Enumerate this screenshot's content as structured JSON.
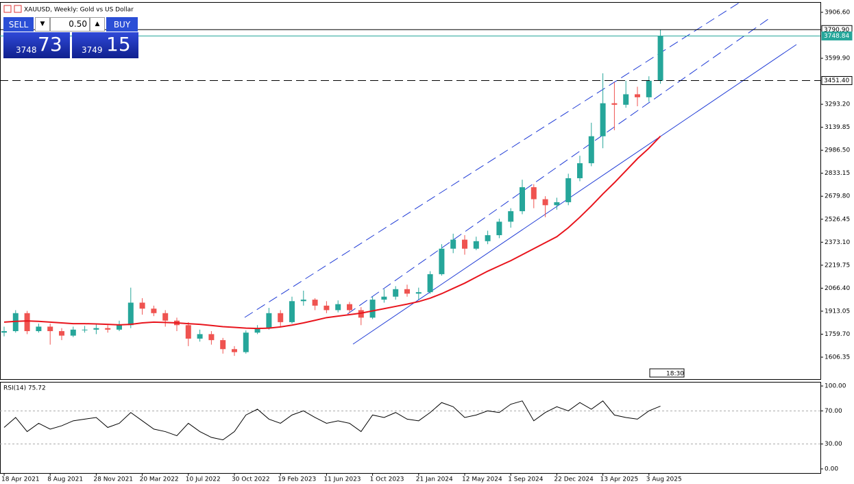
{
  "chart_data": [
    {
      "type": "candlestick",
      "title": "XAUUSD, Weekly:  Gold vs US Dollar",
      "categories": [
        "18 Apr 2021",
        null,
        null,
        null,
        "8 Aug 2021",
        null,
        null,
        null,
        "28 Nov 2021",
        null,
        null,
        null,
        "20 Mar 2022",
        null,
        null,
        null,
        "10 Jul 2022",
        null,
        null,
        null,
        "30 Oct 2022",
        null,
        null,
        null,
        "19 Feb 2023",
        null,
        null,
        null,
        "11 Jun 2023",
        null,
        null,
        null,
        "1 Oct 2023",
        null,
        null,
        null,
        "21 Jan 2024",
        null,
        null,
        null,
        "12 May 2024",
        null,
        null,
        null,
        "1 Sep 2024",
        null,
        null,
        null,
        "22 Dec 2024",
        null,
        null,
        null,
        "13 Apr 2025",
        null,
        null,
        null,
        "3 Aug 2025",
        null
      ],
      "open": [
        1770,
        1780,
        1900,
        1780,
        1810,
        1780,
        1750,
        1790,
        1790,
        1800,
        1790,
        1820,
        1970,
        1930,
        1900,
        1850,
        1820,
        1730,
        1760,
        1720,
        1660,
        1640,
        1770,
        1800,
        1900,
        1840,
        1980,
        1990,
        1950,
        1920,
        1960,
        1920,
        1870,
        1990,
        2010,
        2060,
        2030,
        2040,
        2160,
        2330,
        2390,
        2330,
        2380,
        2420,
        2510,
        2580,
        2740,
        2660,
        2620,
        2640,
        2800,
        2900,
        3080,
        3300,
        3290,
        3360,
        3340,
        3450
      ],
      "high": [
        1810,
        1920,
        1915,
        1830,
        1830,
        1800,
        1810,
        1815,
        1830,
        1820,
        1850,
        2070,
        2000,
        1950,
        1920,
        1870,
        1840,
        1790,
        1780,
        1735,
        1680,
        1785,
        1820,
        1935,
        1920,
        2010,
        2050,
        2000,
        1980,
        1985,
        1975,
        1940,
        2010,
        2060,
        2080,
        2090,
        2070,
        2180,
        2360,
        2430,
        2420,
        2410,
        2450,
        2530,
        2600,
        2790,
        2760,
        2680,
        2670,
        2830,
        2950,
        3170,
        3500,
        3440,
        3450,
        3410,
        3480,
        3790.9
      ],
      "low": [
        1745,
        1770,
        1760,
        1770,
        1690,
        1720,
        1740,
        1770,
        1760,
        1770,
        1780,
        1800,
        1890,
        1880,
        1810,
        1780,
        1680,
        1710,
        1690,
        1630,
        1615,
        1630,
        1760,
        1790,
        1810,
        1830,
        1950,
        1920,
        1900,
        1905,
        1900,
        1820,
        1860,
        1970,
        1990,
        2010,
        1990,
        2030,
        2150,
        2300,
        2290,
        2320,
        2360,
        2400,
        2470,
        2560,
        2600,
        2540,
        2590,
        2620,
        2780,
        2880,
        3000,
        3120,
        3270,
        3280,
        3310,
        3430
      ],
      "close": [
        1780,
        1900,
        1780,
        1810,
        1780,
        1750,
        1790,
        1790,
        1800,
        1790,
        1820,
        1970,
        1930,
        1900,
        1850,
        1820,
        1730,
        1760,
        1720,
        1660,
        1640,
        1770,
        1800,
        1900,
        1840,
        1980,
        1990,
        1950,
        1920,
        1960,
        1920,
        1870,
        1990,
        2010,
        2060,
        2030,
        2040,
        2160,
        2330,
        2390,
        2330,
        2380,
        2420,
        2510,
        2580,
        2740,
        2660,
        2620,
        2640,
        2800,
        2900,
        3080,
        3300,
        3290,
        3360,
        3340,
        3450,
        3748.84
      ],
      "up_color": "#26a69a",
      "down_color": "#ef5350",
      "overlays": [
        {
          "color": "#e8141c",
          "values": [
            1840,
            1845,
            1848,
            1845,
            1840,
            1835,
            1830,
            1830,
            1828,
            1825,
            1822,
            1825,
            1835,
            1840,
            1838,
            1835,
            1830,
            1825,
            1818,
            1810,
            1805,
            1800,
            1798,
            1800,
            1808,
            1820,
            1835,
            1852,
            1870,
            1880,
            1890,
            1900,
            1915,
            1930,
            1945,
            1960,
            1977,
            2000,
            2030,
            2065,
            2100,
            2140,
            2180,
            2215,
            2250,
            2290,
            2330,
            2370,
            2410,
            2470,
            2540,
            2615,
            2695,
            2770,
            2850,
            2930,
            3000,
            3080
          ]
        }
      ],
      "price_lines": [
        {
          "value": 3790.9,
          "label": "3790.90",
          "color": "#000000",
          "style": "solid"
        },
        {
          "value": 3748.84,
          "label": "3748.84",
          "color": "#26a69a",
          "style": "solid"
        },
        {
          "value": 3451.4,
          "label": "3451.40",
          "color": "#000000",
          "style": "dashed"
        }
      ],
      "ylim": [
        1460,
        3975
      ],
      "yticks": [
        {
          "value": 1606.35,
          "label": "1606.35"
        },
        {
          "value": 1759.7,
          "label": "1759.70"
        },
        {
          "value": 1913.05,
          "label": "1913.05"
        },
        {
          "value": 2066.4,
          "label": "2066.40"
        },
        {
          "value": 2219.75,
          "label": "2219.75"
        },
        {
          "value": 2373.1,
          "label": "2373.10"
        },
        {
          "value": 2526.45,
          "label": "2526.45"
        },
        {
          "value": 2679.8,
          "label": "2679.80"
        },
        {
          "value": 2833.15,
          "label": "2833.15"
        },
        {
          "value": 2986.5,
          "label": "2986.50"
        },
        {
          "value": 3139.85,
          "label": "3139.85"
        },
        {
          "value": 3293.2,
          "label": "3293.20"
        },
        {
          "value": 3599.9,
          "label": "3599.90"
        },
        {
          "value": 3906.6,
          "label": "3906.60"
        }
      ],
      "grid": false
    },
    {
      "type": "line",
      "title": "RSI(14) 75.72",
      "color": "#000000",
      "values": [
        50,
        62,
        45,
        55,
        48,
        52,
        58,
        60,
        62,
        50,
        55,
        68,
        58,
        48,
        45,
        40,
        55,
        45,
        38,
        35,
        45,
        65,
        72,
        60,
        55,
        65,
        70,
        62,
        55,
        58,
        55,
        45,
        65,
        62,
        68,
        60,
        58,
        68,
        80,
        75,
        62,
        65,
        70,
        68,
        78,
        82,
        58,
        68,
        75,
        70,
        80,
        72,
        82,
        65,
        62,
        60,
        70,
        75.72
      ],
      "ylim": [
        -5,
        105
      ],
      "yticks": [
        {
          "value": 0,
          "label": "0.00"
        },
        {
          "value": 30,
          "label": "30.00"
        },
        {
          "value": 70,
          "label": "70.00"
        },
        {
          "value": 100,
          "label": "100.00"
        }
      ],
      "levels": [
        30,
        70
      ]
    }
  ],
  "trade_panel": {
    "sell": "SELL",
    "lot": "0.50",
    "buy": "BUY",
    "bid_main": "3748",
    "bid_pips": "73",
    "ask_main": "3749",
    "ask_pips": "15"
  },
  "time_marker": "18:30"
}
